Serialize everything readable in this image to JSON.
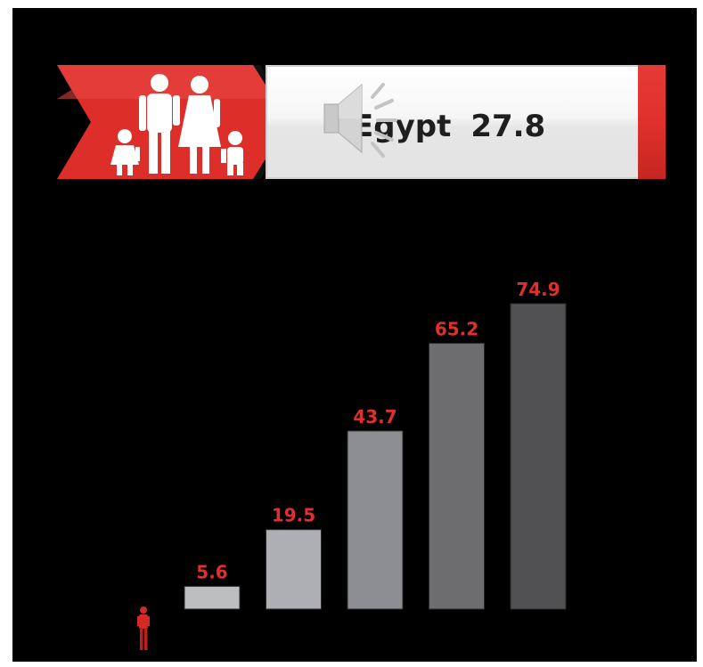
{
  "banner": {
    "country": "Egypt",
    "value": "27.8",
    "icons": [
      "family-icon",
      "speaker-icon"
    ]
  },
  "colors": {
    "background": "#000000",
    "accent_red": "#e0302c",
    "label_red": "#e0302c"
  },
  "chart_data": {
    "type": "bar",
    "categories": [
      "",
      "",
      "",
      "",
      ""
    ],
    "values": [
      5.6,
      19.5,
      43.7,
      65.2,
      74.9
    ],
    "labels": [
      "5.6",
      "19.5",
      "43.7",
      "65.2",
      "74.9"
    ],
    "bar_colors": [
      "#bdbec0",
      "#aeafb2",
      "#8d8e91",
      "#6d6d70",
      "#515153"
    ],
    "ylim": [
      0,
      74.9
    ],
    "grid": false,
    "legend": "none"
  }
}
